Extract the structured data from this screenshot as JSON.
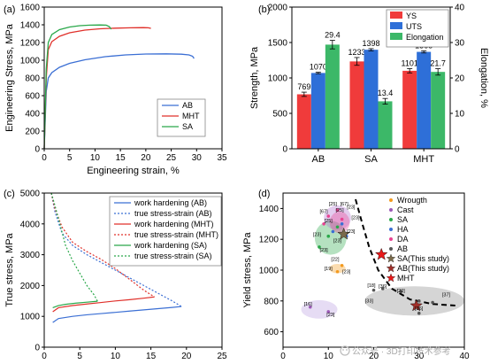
{
  "figure": {
    "watermark": "公众号 · 3D打印技术参考",
    "watermark_icon": "wechat-icon"
  },
  "chart_data": [
    {
      "panel": "(a)",
      "type": "line",
      "xlabel": "Engineering strain, %",
      "ylabel": "Engineering Stress, MPa",
      "xlim": [
        0,
        35
      ],
      "ylim": [
        0,
        1600
      ],
      "xticks": [
        0,
        5,
        10,
        15,
        20,
        25,
        30,
        35
      ],
      "yticks": [
        0,
        200,
        400,
        600,
        800,
        1000,
        1200,
        1400,
        1600
      ],
      "grid": false,
      "legend": "bottom-right",
      "series": [
        {
          "name": "AB",
          "color": "#3b6fd4",
          "x": [
            0,
            0.4,
            0.8,
            1.5,
            3,
            5,
            8,
            12,
            16,
            20,
            24,
            27,
            28.5,
            29.2,
            29.5
          ],
          "y": [
            0,
            650,
            800,
            860,
            920,
            965,
            1005,
            1040,
            1060,
            1070,
            1072,
            1068,
            1060,
            1045,
            1020
          ]
        },
        {
          "name": "MHT",
          "color": "#e0302a",
          "x": [
            0,
            0.4,
            0.8,
            1.5,
            3,
            5,
            8,
            11,
            14,
            17,
            19.5,
            20.5,
            21
          ],
          "y": [
            0,
            800,
            1120,
            1210,
            1270,
            1310,
            1340,
            1355,
            1362,
            1366,
            1368,
            1366,
            1360
          ]
        },
        {
          "name": "SA",
          "color": "#2aa84a",
          "x": [
            0,
            0.4,
            0.8,
            1.5,
            3,
            5,
            7,
            9,
            11,
            12.2,
            12.8,
            13.2
          ],
          "y": [
            0,
            900,
            1200,
            1290,
            1345,
            1375,
            1390,
            1396,
            1398,
            1396,
            1380,
            1350
          ]
        }
      ]
    },
    {
      "panel": "(b)",
      "type": "bar",
      "categories": [
        "AB",
        "SA",
        "MHT"
      ],
      "ylabel": "Strength, MPa",
      "y2label": "Elongation, %",
      "ylim": [
        0,
        2000
      ],
      "y2lim": [
        0,
        40
      ],
      "yticks": [
        0,
        500,
        1000,
        1500,
        2000
      ],
      "y2ticks": [
        0,
        10,
        20,
        30,
        40
      ],
      "legend": "top-right",
      "series": [
        {
          "name": "YS",
          "color": "#f03b3b",
          "axis": "left",
          "values": [
            769,
            1233,
            1101
          ],
          "errors": [
            30,
            55,
            30
          ],
          "labels": [
            "769",
            "1233",
            "1101"
          ]
        },
        {
          "name": "UTS",
          "color": "#2e6fd8",
          "axis": "left",
          "values": [
            1070,
            1398,
            1368
          ],
          "errors": [
            10,
            15,
            15
          ],
          "labels": [
            "1070",
            "1398",
            "1368"
          ]
        },
        {
          "name": "Elongation",
          "color": "#3cb868",
          "axis": "right",
          "values": [
            29.4,
            13.4,
            21.7
          ],
          "errors": [
            1.2,
            0.8,
            0.9
          ],
          "labels": [
            "29.4",
            "13.4",
            "21.7"
          ]
        }
      ]
    },
    {
      "panel": "(c)",
      "type": "line",
      "xlabel": "True strain, %",
      "ylabel": "True stress, MPa",
      "xlim": [
        0,
        25
      ],
      "ylim": [
        0,
        5000
      ],
      "xticks": [
        0,
        5,
        10,
        15,
        20,
        25
      ],
      "yticks": [
        0,
        1000,
        2000,
        3000,
        4000,
        5000
      ],
      "legend": "top-right",
      "series": [
        {
          "name": "work hardening (AB)",
          "color": "#3b6fd4",
          "style": "solid",
          "x": [
            1.2,
            2,
            4,
            6,
            8,
            10,
            12,
            14,
            16,
            18,
            19.3
          ],
          "y": [
            800,
            930,
            1000,
            1050,
            1090,
            1130,
            1170,
            1210,
            1250,
            1290,
            1320
          ]
        },
        {
          "name": "true stress-strain (AB)",
          "color": "#3b6fd4",
          "style": "dotted",
          "x": [
            1,
            1.5,
            2.5,
            4,
            6,
            8,
            10,
            12,
            14,
            16,
            18,
            19.3
          ],
          "y": [
            5000,
            4400,
            3700,
            3300,
            3000,
            2750,
            2500,
            2250,
            2000,
            1750,
            1500,
            1320
          ]
        },
        {
          "name": "work hardening (MHT)",
          "color": "#e0302a",
          "style": "solid",
          "x": [
            1.2,
            2,
            4,
            6,
            8,
            10,
            12,
            14,
            15.5
          ],
          "y": [
            1150,
            1280,
            1350,
            1400,
            1450,
            1500,
            1540,
            1590,
            1630
          ]
        },
        {
          "name": "true stress-strain (MHT)",
          "color": "#e0302a",
          "style": "dotted",
          "x": [
            1,
            1.5,
            2.5,
            4,
            6,
            8,
            10,
            12,
            14,
            15.5
          ],
          "y": [
            5000,
            4500,
            3900,
            3400,
            3100,
            2850,
            2550,
            2200,
            1850,
            1630
          ]
        },
        {
          "name": "work hardening (SA)",
          "color": "#2aa84a",
          "style": "solid",
          "x": [
            1.2,
            2,
            3,
            4.5,
            6,
            7.5
          ],
          "y": [
            1280,
            1350,
            1390,
            1430,
            1460,
            1490
          ]
        },
        {
          "name": "true stress-strain (SA)",
          "color": "#2aa84a",
          "style": "dotted",
          "x": [
            1,
            1.5,
            2.2,
            3,
            4,
            5,
            6,
            7,
            7.5
          ],
          "y": [
            5000,
            4600,
            4000,
            3300,
            2800,
            2400,
            2000,
            1700,
            1490
          ]
        }
      ]
    },
    {
      "panel": "(d)",
      "type": "scatter",
      "xlabel": "Elongation, %",
      "ylabel": "Yield stress, MPa",
      "xlim": [
        0,
        40
      ],
      "ylim": [
        500,
        1500
      ],
      "xticks": [
        0,
        10,
        20,
        30,
        40
      ],
      "yticks": [
        600,
        800,
        1000,
        1200,
        1400
      ],
      "legend": "top-right",
      "series": [
        {
          "name": "Wrougth",
          "color": "#f39a1e",
          "marker": "circle",
          "points": [
            [
              12,
              990
            ],
            [
              13,
              1030
            ]
          ]
        },
        {
          "name": "Cast",
          "color": "#9b59b6",
          "marker": "circle",
          "points": [
            [
              6,
              760
            ],
            [
              10,
              730
            ]
          ]
        },
        {
          "name": "SA",
          "color": "#2aa84a",
          "marker": "circle",
          "points": [
            [
              8,
              1150
            ],
            [
              10,
              1220
            ],
            [
              12,
              1280
            ]
          ]
        },
        {
          "name": "HA",
          "color": "#3b6fd4",
          "marker": "circle",
          "points": [
            [
              11,
              1250
            ],
            [
              13,
              1300
            ],
            [
              14,
              1220
            ]
          ]
        },
        {
          "name": "DA",
          "color": "#e84393",
          "marker": "circle",
          "points": [
            [
              10,
              1350
            ],
            [
              12,
              1390
            ],
            [
              9,
              1300
            ],
            [
              13,
              1330
            ]
          ]
        },
        {
          "name": "AB",
          "color": "#555555",
          "marker": "circle",
          "points": [
            [
              20,
              870
            ],
            [
              22,
              880
            ],
            [
              26,
              860
            ],
            [
              30,
              800
            ],
            [
              33,
              790
            ],
            [
              30,
              720
            ]
          ]
        },
        {
          "name": "SA(This study)",
          "color": "#7a6a4a",
          "marker": "star",
          "points": [
            [
              13.4,
              1233
            ]
          ]
        },
        {
          "name": "AB(This study)",
          "color": "#a0302a",
          "marker": "star",
          "points": [
            [
              29.4,
              769
            ]
          ]
        },
        {
          "name": "MHT",
          "color": "#e8191a",
          "marker": "star",
          "points": [
            [
              21.7,
              1101
            ]
          ]
        }
      ],
      "refs": [
        {
          "text": "[25]",
          "x": 11,
          "y": 1420
        },
        {
          "text": "[67]",
          "x": 13.5,
          "y": 1420
        },
        {
          "text": "[67]",
          "x": 9,
          "y": 1370
        },
        {
          "text": "[25]",
          "x": 12.5,
          "y": 1380
        },
        {
          "text": "[23]",
          "x": 15,
          "y": 1400
        },
        {
          "text": "[23]",
          "x": 16,
          "y": 1330
        },
        {
          "text": "[25]",
          "x": 10,
          "y": 1310
        },
        {
          "text": "[23]",
          "x": 15,
          "y": 1240
        },
        {
          "text": "[23]",
          "x": 7.5,
          "y": 1220
        },
        {
          "text": "[23]",
          "x": 12,
          "y": 1180
        },
        {
          "text": "[23]",
          "x": 9,
          "y": 1120
        },
        {
          "text": "[22]",
          "x": 11.5,
          "y": 1060
        },
        {
          "text": "[19]",
          "x": 10,
          "y": 1000
        },
        {
          "text": "[23]",
          "x": 14,
          "y": 980
        },
        {
          "text": "[18]",
          "x": 19.5,
          "y": 890
        },
        {
          "text": "[36]",
          "x": 22,
          "y": 885
        },
        {
          "text": "[20]",
          "x": 26,
          "y": 855
        },
        {
          "text": "[37]",
          "x": 36,
          "y": 830
        },
        {
          "text": "[33]",
          "x": 19,
          "y": 790
        },
        {
          "text": "[36]",
          "x": 30,
          "y": 740
        },
        {
          "text": "[16]",
          "x": 5.5,
          "y": 770
        },
        {
          "text": "[23]",
          "x": 10.5,
          "y": 700
        }
      ],
      "ellipses": [
        {
          "group": "green",
          "cx": 10.5,
          "cy": 1210,
          "rx": 3.5,
          "ry": 110,
          "color": "#2aa84a"
        },
        {
          "group": "purple",
          "cx": 12,
          "cy": 1340,
          "rx": 3,
          "ry": 80,
          "color": "#b070d0"
        },
        {
          "group": "pink",
          "cx": 12.5,
          "cy": 1310,
          "rx": 2.2,
          "ry": 70,
          "color": "#e84393"
        },
        {
          "group": "orange",
          "cx": 12,
          "cy": 1010,
          "rx": 1.8,
          "ry": 30,
          "color": "#f39a1e"
        },
        {
          "group": "grey",
          "cx": 29,
          "cy": 800,
          "rx": 11,
          "ry": 95,
          "color": "#888888"
        },
        {
          "group": "lavender",
          "cx": 8,
          "cy": 745,
          "rx": 4,
          "ry": 60,
          "color": "#b89ae0"
        }
      ],
      "trend": {
        "x": [
          16,
          17.5,
          19,
          21,
          24,
          28,
          33,
          38
        ],
        "y": [
          1460,
          1300,
          1150,
          1000,
          880,
          810,
          780,
          770
        ]
      }
    }
  ]
}
